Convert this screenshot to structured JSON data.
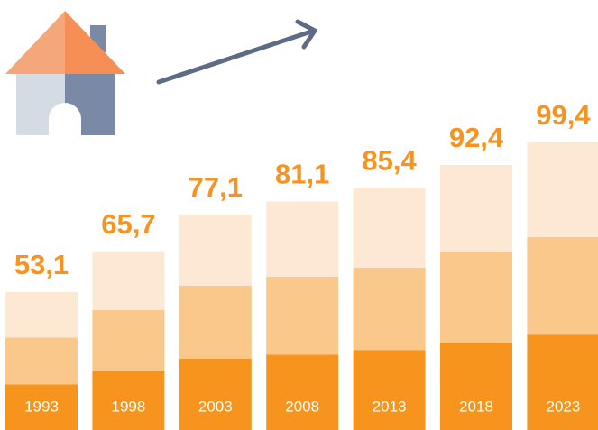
{
  "chart_data": {
    "type": "bar",
    "categories": [
      "1993",
      "1998",
      "2003",
      "2008",
      "2013",
      "2018",
      "2023"
    ],
    "values": [
      53.1,
      65.7,
      77.1,
      81.1,
      85.4,
      92.4,
      99.4
    ],
    "value_labels": [
      "53,1",
      "65,7",
      "77,1",
      "81,1",
      "85,4",
      "92,4",
      "99,4"
    ],
    "color": "#f7941d",
    "ylim": [
      10.4,
      104
    ]
  }
}
